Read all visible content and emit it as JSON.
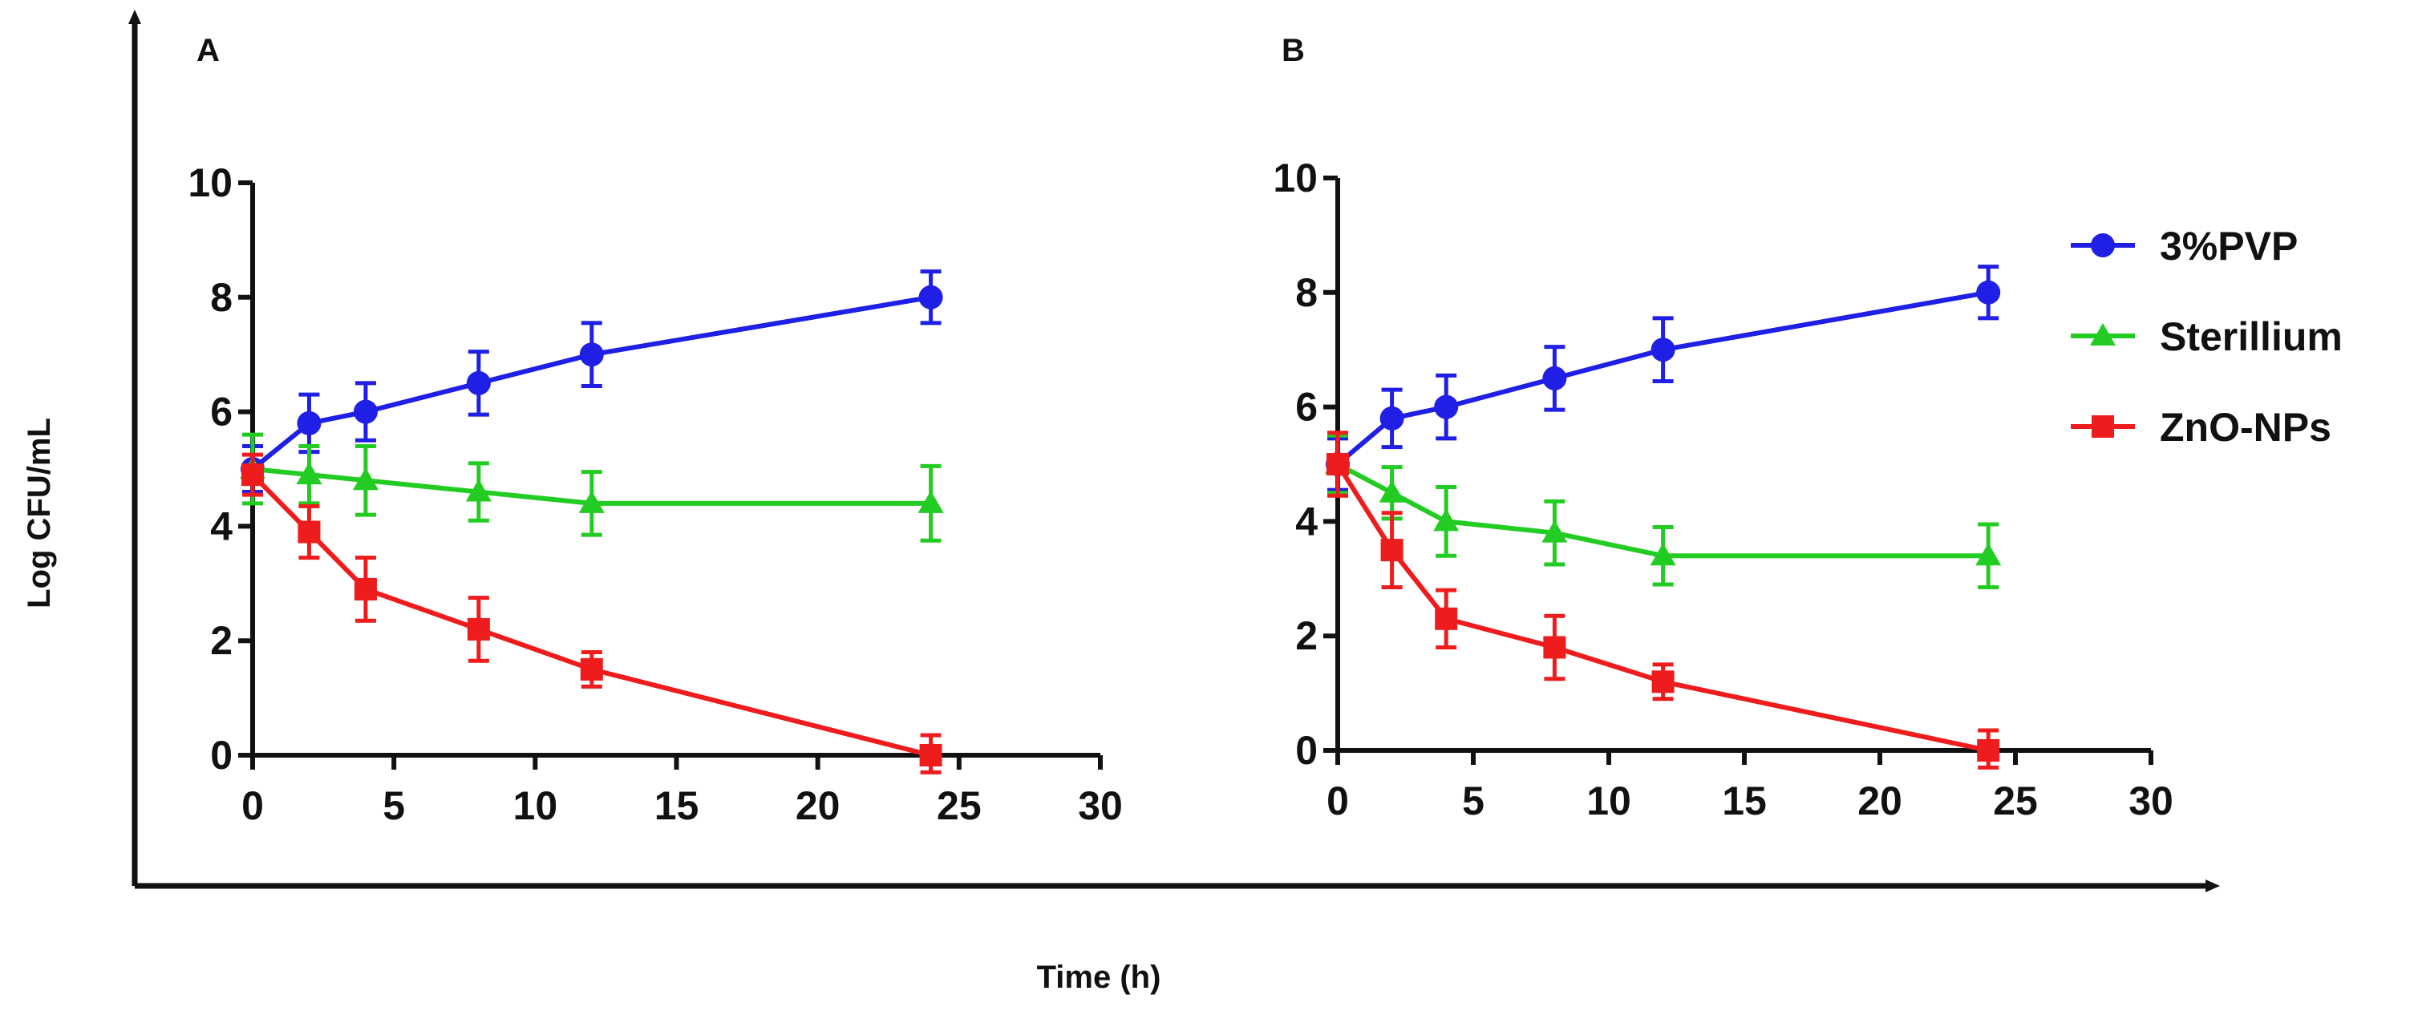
{
  "figure": {
    "xlabel": "Time (h)",
    "ylabel": "Log CFU/mL"
  },
  "legend": [
    {
      "name": "3%PVP",
      "color": "#1f1fe6",
      "marker": "circle"
    },
    {
      "name": "Sterillium",
      "color": "#22cc22",
      "marker": "triangle"
    },
    {
      "name": "ZnO-NPs",
      "color": "#ee1c1c",
      "marker": "square"
    }
  ],
  "chart_data": [
    {
      "type": "line",
      "panel": "A",
      "xlim": [
        0,
        30
      ],
      "ylim": [
        0,
        10
      ],
      "xticks": [
        0,
        5,
        10,
        15,
        20,
        25,
        30
      ],
      "yticks": [
        0,
        2,
        4,
        6,
        8,
        10
      ],
      "x": [
        0,
        2,
        4,
        8,
        12,
        24
      ],
      "series": [
        {
          "name": "3%PVP",
          "color": "#1f1fe6",
          "marker": "circle",
          "values": [
            5.0,
            5.8,
            6.0,
            6.5,
            7.0,
            8.0
          ],
          "errors": [
            0.4,
            0.5,
            0.5,
            0.55,
            0.55,
            0.45
          ]
        },
        {
          "name": "Sterillium",
          "color": "#22cc22",
          "marker": "triangle",
          "values": [
            5.0,
            4.9,
            4.8,
            4.6,
            4.4,
            4.4
          ],
          "errors": [
            0.6,
            0.5,
            0.6,
            0.5,
            0.55,
            0.65
          ]
        },
        {
          "name": "ZnO-NPs",
          "color": "#ee1c1c",
          "marker": "square",
          "values": [
            4.9,
            3.9,
            2.9,
            2.2,
            1.5,
            0.0
          ],
          "errors": [
            0.35,
            0.45,
            0.55,
            0.55,
            0.3,
            0.35
          ]
        }
      ]
    },
    {
      "type": "line",
      "panel": "B",
      "xlim": [
        0,
        30
      ],
      "ylim": [
        0,
        10
      ],
      "xticks": [
        0,
        5,
        10,
        15,
        20,
        25,
        30
      ],
      "yticks": [
        0,
        2,
        4,
        6,
        8,
        10
      ],
      "x": [
        0,
        2,
        4,
        8,
        12,
        24
      ],
      "series": [
        {
          "name": "3%PVP",
          "color": "#1f1fe6",
          "marker": "circle",
          "values": [
            5.0,
            5.8,
            6.0,
            6.5,
            7.0,
            8.0
          ],
          "errors": [
            0.45,
            0.5,
            0.55,
            0.55,
            0.55,
            0.45
          ]
        },
        {
          "name": "Sterillium",
          "color": "#22cc22",
          "marker": "triangle",
          "values": [
            5.0,
            4.5,
            4.0,
            3.8,
            3.4,
            3.4
          ],
          "errors": [
            0.5,
            0.45,
            0.6,
            0.55,
            0.5,
            0.55
          ]
        },
        {
          "name": "ZnO-NPs",
          "color": "#ee1c1c",
          "marker": "square",
          "values": [
            5.0,
            3.5,
            2.3,
            1.8,
            1.2,
            0.0
          ],
          "errors": [
            0.55,
            0.65,
            0.5,
            0.55,
            0.3,
            0.35
          ]
        }
      ]
    }
  ]
}
